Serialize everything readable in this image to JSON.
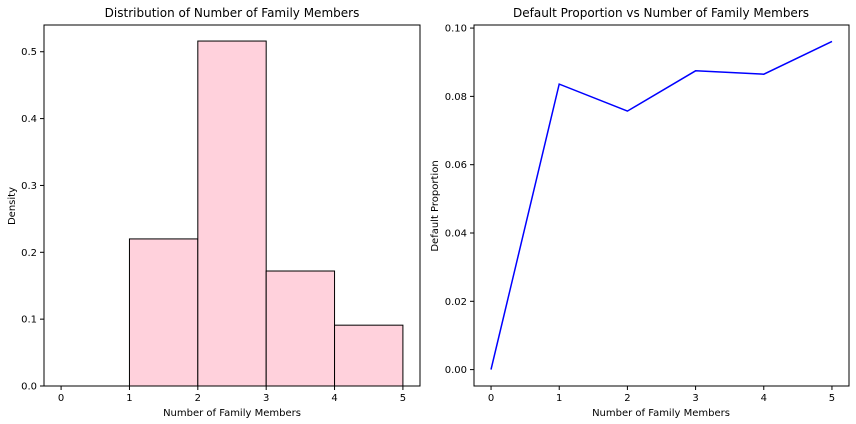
{
  "chart_data": [
    {
      "type": "bar",
      "title": "Distribution of Number of Family Members",
      "xlabel": "Number of Family Members",
      "ylabel": "Density",
      "xlim": [
        -0.25,
        5.25
      ],
      "ylim": [
        0,
        0.54
      ],
      "xticks": [
        "0",
        "1",
        "2",
        "3",
        "4",
        "5"
      ],
      "yticks": [
        "0.0",
        "0.1",
        "0.2",
        "0.3",
        "0.4",
        "0.5"
      ],
      "bins": [
        {
          "x0": 1,
          "x1": 2,
          "value": 0.22
        },
        {
          "x0": 2,
          "x1": 3,
          "value": 0.516
        },
        {
          "x0": 3,
          "x1": 4,
          "value": 0.172
        },
        {
          "x0": 4,
          "x1": 5,
          "value": 0.091
        }
      ],
      "bar_color": "#ffd1dc",
      "edge_color": "#000000",
      "grid": false
    },
    {
      "type": "line",
      "title": "Default Proportion vs Number of Family Members",
      "xlabel": "Number of Family Members",
      "ylabel": "Default Proportion",
      "xlim": [
        -0.25,
        5.25
      ],
      "ylim": [
        -0.0048,
        0.1009
      ],
      "xticks": [
        "0",
        "1",
        "2",
        "3",
        "4",
        "5"
      ],
      "yticks": [
        "0.00",
        "0.02",
        "0.04",
        "0.06",
        "0.08",
        "0.10"
      ],
      "x": [
        0,
        1,
        2,
        3,
        4,
        5
      ],
      "y": [
        0.0,
        0.0836,
        0.0757,
        0.0875,
        0.0865,
        0.0961
      ],
      "line_color": "#0000ff",
      "grid": false
    }
  ]
}
